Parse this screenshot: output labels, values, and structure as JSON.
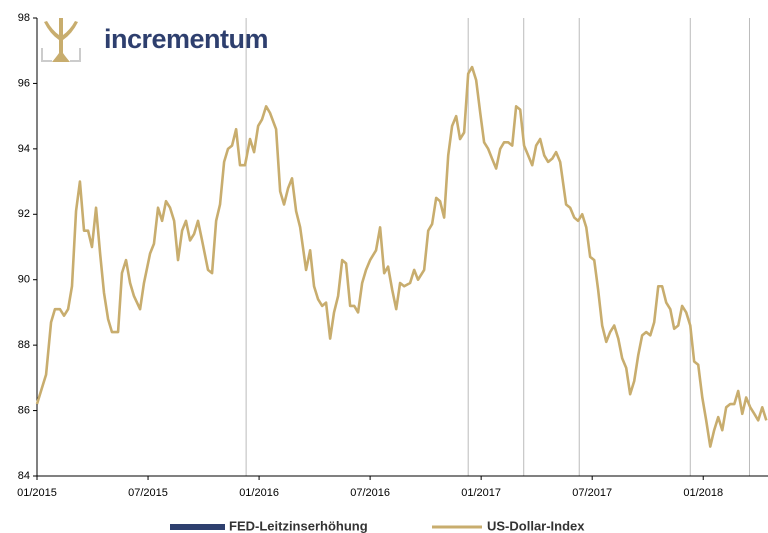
{
  "chart_data": {
    "type": "line",
    "logo": "incrementum",
    "xlim": [
      0,
      39.5
    ],
    "xticks": [
      {
        "value": 0,
        "label": "01/2015"
      },
      {
        "value": 6,
        "label": "07/2015"
      },
      {
        "value": 12,
        "label": "01/2016"
      },
      {
        "value": 18,
        "label": "07/2016"
      },
      {
        "value": 24,
        "label": "01/2017"
      },
      {
        "value": 30,
        "label": "07/2017"
      },
      {
        "value": 36,
        "label": "01/2018"
      }
    ],
    "ylim": [
      84,
      98
    ],
    "yticks": [
      84,
      86,
      88,
      90,
      92,
      94,
      96,
      98
    ],
    "events": {
      "name": "FED-Leitzinserhöhung",
      "color": "#2e3f6e",
      "line_color": "#bbbbbb",
      "x": [
        11.3,
        23.3,
        26.3,
        29.3,
        35.3,
        38.5
      ]
    },
    "series": [
      {
        "name": "US-Dollar-Index",
        "color": "#c8ad6e",
        "x": [
          0,
          0.49,
          0.76,
          0.97,
          1.24,
          1.46,
          1.68,
          1.89,
          2.11,
          2.32,
          2.54,
          2.76,
          2.97,
          3.19,
          3.41,
          3.62,
          3.84,
          4.05,
          4.38,
          4.59,
          4.81,
          5.03,
          5.24,
          5.57,
          5.78,
          6.11,
          6.32,
          6.54,
          6.76,
          6.97,
          7.19,
          7.41,
          7.62,
          7.84,
          8.05,
          8.27,
          8.49,
          8.7,
          8.92,
          9.24,
          9.46,
          9.68,
          9.89,
          10.11,
          10.32,
          10.54,
          10.76,
          10.97,
          11.24,
          11.51,
          11.73,
          11.95,
          12.16,
          12.38,
          12.59,
          12.92,
          13.14,
          13.35,
          13.57,
          13.78,
          14,
          14.22,
          14.54,
          14.76,
          14.97,
          15.19,
          15.41,
          15.62,
          15.84,
          16.05,
          16.27,
          16.49,
          16.7,
          16.92,
          17.14,
          17.35,
          17.57,
          17.78,
          18,
          18.32,
          18.54,
          18.76,
          18.97,
          19.19,
          19.41,
          19.62,
          19.84,
          20.16,
          20.38,
          20.59,
          20.92,
          21.14,
          21.35,
          21.57,
          21.78,
          22,
          22.22,
          22.43,
          22.65,
          22.86,
          23.08,
          23.3,
          23.51,
          23.73,
          23.95,
          24.16,
          24.38,
          24.59,
          24.81,
          25.03,
          25.24,
          25.46,
          25.68,
          25.89,
          26.11,
          26.32,
          26.54,
          26.76,
          26.97,
          27.19,
          27.41,
          27.62,
          27.84,
          28.05,
          28.27,
          28.59,
          28.81,
          29.03,
          29.24,
          29.46,
          29.68,
          29.89,
          30.11,
          30.32,
          30.54,
          30.76,
          30.97,
          31.19,
          31.41,
          31.62,
          31.84,
          32.05,
          32.27,
          32.49,
          32.7,
          32.92,
          33.14,
          33.35,
          33.57,
          33.78,
          34,
          34.22,
          34.43,
          34.65,
          34.86,
          35.08,
          35.3,
          35.51,
          35.73,
          35.95,
          36.16,
          36.38,
          36.59,
          36.81,
          37.03,
          37.24,
          37.46,
          37.68,
          37.89,
          38.11,
          38.32,
          38.54,
          38.76,
          38.97,
          39.19,
          39.41
        ],
        "values": [
          86.2,
          87.1,
          88.7,
          89.1,
          89.1,
          88.9,
          89.1,
          89.8,
          92.1,
          93.0,
          91.5,
          91.5,
          91.0,
          92.2,
          90.8,
          89.6,
          88.8,
          88.4,
          88.4,
          90.2,
          90.6,
          89.9,
          89.5,
          89.1,
          89.9,
          90.8,
          91.1,
          92.2,
          91.8,
          92.4,
          92.2,
          91.8,
          90.6,
          91.5,
          91.8,
          91.2,
          91.4,
          91.8,
          91.2,
          90.3,
          90.2,
          91.8,
          92.3,
          93.6,
          94.0,
          94.1,
          94.6,
          93.5,
          93.5,
          94.3,
          93.9,
          94.7,
          94.9,
          95.3,
          95.1,
          94.6,
          92.7,
          92.3,
          92.8,
          93.1,
          92.1,
          91.6,
          90.3,
          90.9,
          89.8,
          89.4,
          89.2,
          89.3,
          88.2,
          89.0,
          89.5,
          90.6,
          90.5,
          89.2,
          89.2,
          89.0,
          89.9,
          90.3,
          90.6,
          90.9,
          91.6,
          90.2,
          90.4,
          89.7,
          89.1,
          89.9,
          89.8,
          89.9,
          90.3,
          90.0,
          90.3,
          91.5,
          91.7,
          92.5,
          92.4,
          91.9,
          93.8,
          94.7,
          95.0,
          94.3,
          94.5,
          96.3,
          96.5,
          96.1,
          95.1,
          94.2,
          94.0,
          93.7,
          93.4,
          94.0,
          94.2,
          94.2,
          94.1,
          95.3,
          95.2,
          94.1,
          93.8,
          93.5,
          94.1,
          94.3,
          93.8,
          93.6,
          93.7,
          93.9,
          93.6,
          92.3,
          92.2,
          91.9,
          91.8,
          92.0,
          91.6,
          90.7,
          90.6,
          89.7,
          88.6,
          88.1,
          88.4,
          88.6,
          88.2,
          87.6,
          87.3,
          86.5,
          86.9,
          87.7,
          88.3,
          88.4,
          88.3,
          88.7,
          89.8,
          89.8,
          89.3,
          89.1,
          88.5,
          88.6,
          89.2,
          89.0,
          88.6,
          87.5,
          87.4,
          86.4,
          85.7,
          84.9,
          85.4,
          85.8,
          85.4,
          86.1,
          86.2,
          86.2,
          86.6,
          85.9,
          86.4,
          86.1,
          85.9,
          85.7,
          86.1,
          85.7
        ]
      }
    ]
  }
}
